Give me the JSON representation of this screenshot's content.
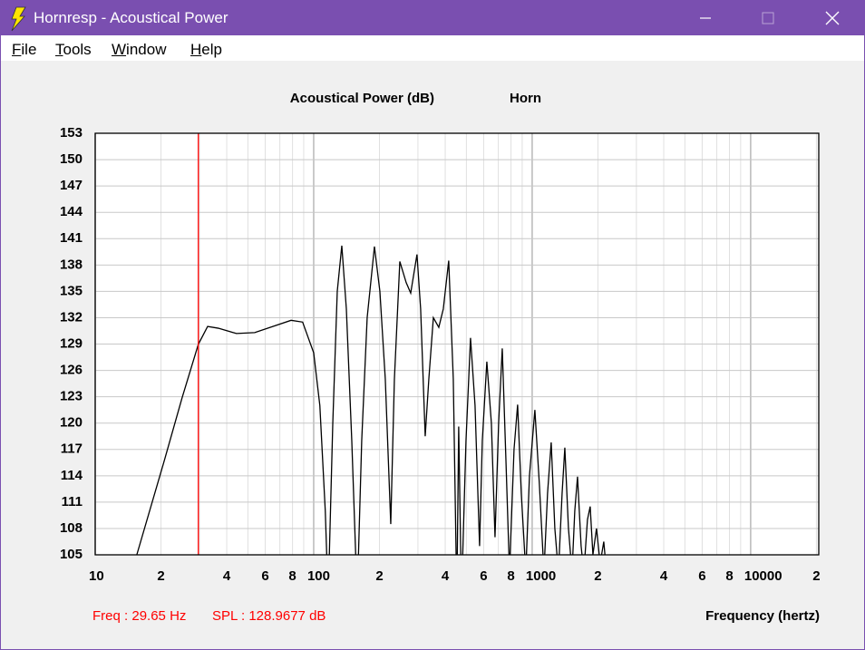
{
  "window": {
    "title": "Hornresp - Acoustical Power",
    "menu": [
      "File",
      "Tools",
      "Window",
      "Help"
    ]
  },
  "chart_data": {
    "type": "line",
    "title": "Acoustical Power (dB)",
    "subtitle": "Horn",
    "x_label": "Frequency (hertz)",
    "xscale": "log",
    "xlim": [
      10,
      20500
    ],
    "xticks": [
      10,
      {
        "value": 20,
        "label": "2"
      },
      {
        "value": 40,
        "label": "4"
      },
      {
        "value": 60,
        "label": "6"
      },
      {
        "value": 80,
        "label": "8"
      },
      100,
      {
        "value": 200,
        "label": "2"
      },
      {
        "value": 400,
        "label": "4"
      },
      {
        "value": 600,
        "label": "6"
      },
      {
        "value": 800,
        "label": "8"
      },
      1000,
      {
        "value": 2000,
        "label": "2"
      },
      {
        "value": 4000,
        "label": "4"
      },
      {
        "value": 6000,
        "label": "6"
      },
      {
        "value": 8000,
        "label": "8"
      },
      10000,
      {
        "value": 20000,
        "label": "2"
      }
    ],
    "xminor": [
      30,
      50,
      70,
      90,
      300,
      500,
      700,
      900,
      3000,
      5000,
      7000,
      9000
    ],
    "ylim": [
      105,
      153
    ],
    "yticks": [
      105,
      108,
      111,
      114,
      117,
      120,
      123,
      126,
      129,
      132,
      135,
      138,
      141,
      144,
      147,
      150,
      153
    ],
    "grid": true,
    "color": "#000000",
    "x": [
      15.5,
      20.7,
      25,
      29.65,
      32.7,
      36.6,
      44.3,
      53.7,
      65,
      78.8,
      89,
      100,
      106.7,
      113,
      116.5,
      122.3,
      128.2,
      134.5,
      141.1,
      149.4,
      158.2,
      165.9,
      175.7,
      189.7,
      200.9,
      212.7,
      225.3,
      234.1,
      247.9,
      265,
      278,
      297,
      308.7,
      323.9,
      336.5,
      353,
      373.8,
      392,
      415,
      435.5,
      452,
      461,
      474.6,
      497.9,
      522.2,
      547.7,
      574.5,
      591.3,
      620.2,
      650.6,
      676,
      702.3,
      729.7,
      758,
      787.5,
      826,
      858,
      891.6,
      935,
      971.9,
      1029,
      1079,
      1132,
      1176,
      1222,
      1270,
      1319,
      1371,
      1411,
      1466,
      1522,
      1567,
      1613,
      1675,
      1724,
      1791,
      1843,
      1897,
      1970,
      2047,
      2127,
      2189
    ],
    "values": [
      105,
      115.7,
      122.9,
      128.97,
      131,
      130.8,
      130.2,
      130.3,
      131,
      131.7,
      131.5,
      128,
      122,
      110,
      100,
      120,
      135,
      140.2,
      133,
      118,
      100,
      118,
      132,
      140.1,
      135,
      125,
      108.5,
      125,
      138.4,
      136,
      134.8,
      139.2,
      133,
      118.5,
      125,
      132,
      130.9,
      133,
      138.5,
      125,
      100,
      119.6,
      100,
      118,
      129.7,
      122,
      106,
      118,
      127,
      120,
      107,
      120,
      128.5,
      116,
      103,
      117,
      122.1,
      112,
      103,
      114,
      121.5,
      113,
      103,
      112,
      117.8,
      108,
      103,
      112,
      117.2,
      108,
      103,
      110,
      113.9,
      106,
      103,
      109,
      110.5,
      105,
      108,
      104,
      106.5,
      103
    ],
    "cursor": {
      "freq_label": "Freq :",
      "freq": 29.65,
      "freq_unit": "Hz",
      "spl_label": "SPL :",
      "spl": 128.9677,
      "spl_unit": "dB",
      "color": "#ff0000"
    }
  }
}
